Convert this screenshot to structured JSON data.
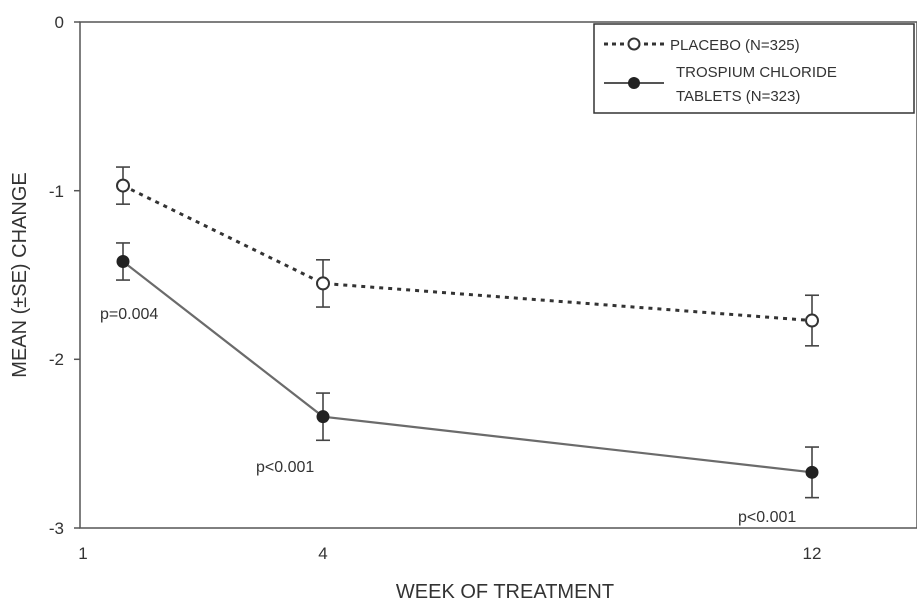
{
  "chart_data": {
    "type": "line",
    "x_ticks": [
      "1",
      "4",
      "12"
    ],
    "y_ticks": [
      "0",
      "-1",
      "-2",
      "-3"
    ],
    "xlabel": "WEEK OF TREATMENT",
    "ylabel": "MEAN (±SE) CHANGE",
    "ylim": [
      -3,
      0
    ],
    "grid": false,
    "legend_position": "top-right",
    "x_positions": [
      1.5,
      4,
      12
    ],
    "series": [
      {
        "name": "PLACEBO (N=325)",
        "style": "dotted",
        "marker": "open-circle",
        "color": "#333333",
        "values": [
          -0.97,
          -1.55,
          -1.77
        ],
        "se": [
          0.11,
          0.14,
          0.15
        ]
      },
      {
        "name_lines": [
          "TROSPIUM CHLORIDE",
          "TABLETS (N=323)"
        ],
        "style": "solid",
        "marker": "filled-circle",
        "color": "#333333",
        "line_color": "#6b6b6b",
        "values": [
          -1.42,
          -2.34,
          -2.67
        ],
        "se": [
          0.11,
          0.14,
          0.15
        ]
      }
    ],
    "annotations": [
      "p=0.004",
      "p<0.001",
      "p<0.001"
    ]
  }
}
